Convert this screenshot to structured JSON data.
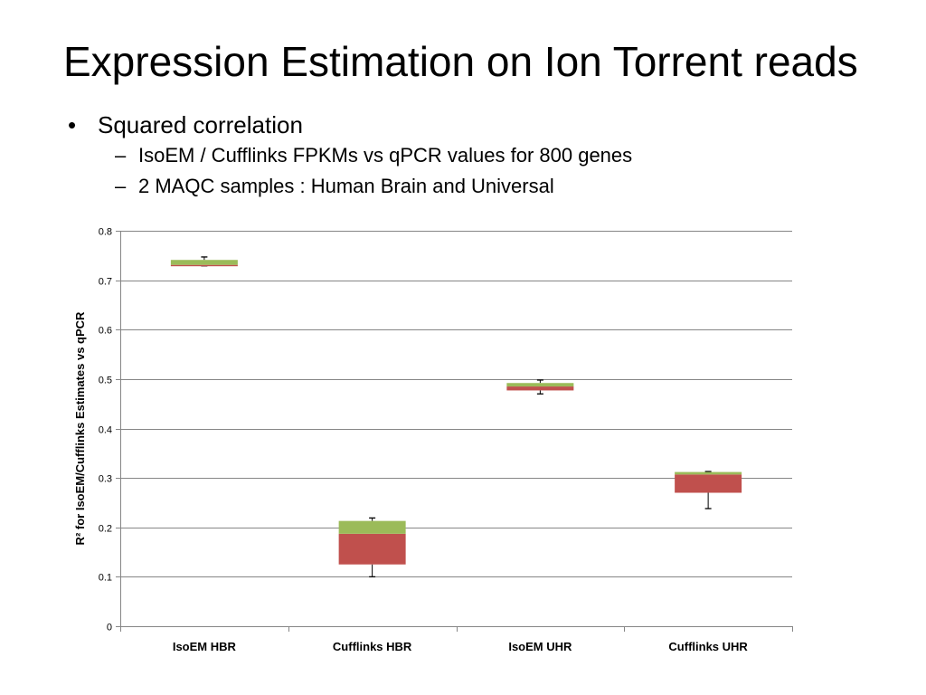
{
  "slide": {
    "title": "Expression Estimation on Ion Torrent reads",
    "bullet": {
      "marker": "•",
      "text": "Squared correlation"
    },
    "sub_bullets": [
      {
        "marker": "–",
        "text": "IsoEM / Cufflinks FPKMs vs  qPCR values for 800 genes"
      },
      {
        "marker": "–",
        "text": "2 MAQC samples : Human Brain and Universal"
      }
    ]
  },
  "colors": {
    "lower_box": "#C0504D",
    "upper_box": "#9BBB59",
    "gridline": "#868686",
    "axis": "#868686",
    "whisker": "#000000"
  },
  "chart_data": {
    "type": "box",
    "ylabel": "R² for IsoEM/Cufflinks Estimates vs qPCR",
    "xlabel": "",
    "ylim": [
      0,
      0.8
    ],
    "yticks": [
      0,
      0.1,
      0.2,
      0.3,
      0.4,
      0.5,
      0.6,
      0.7,
      0.8
    ],
    "ytick_labels": [
      "0",
      "0.1",
      "0.2",
      "0.3",
      "0.4",
      "0.5",
      "0.6",
      "0.7",
      "0.8"
    ],
    "grid": true,
    "categories": [
      "IsoEM HBR",
      "Cufflinks HBR",
      "IsoEM UHR",
      "Cufflinks UHR"
    ],
    "boxes": [
      {
        "category": "IsoEM HBR",
        "min": 0.729,
        "q1": 0.729,
        "median": 0.731,
        "q3": 0.741,
        "max": 0.747
      },
      {
        "category": "Cufflinks HBR",
        "min": 0.1,
        "q1": 0.125,
        "median": 0.187,
        "q3": 0.213,
        "max": 0.219
      },
      {
        "category": "IsoEM UHR",
        "min": 0.47,
        "q1": 0.477,
        "median": 0.485,
        "q3": 0.492,
        "max": 0.498
      },
      {
        "category": "Cufflinks UHR",
        "min": 0.238,
        "q1": 0.27,
        "median": 0.307,
        "q3": 0.312,
        "max": 0.313
      }
    ]
  }
}
